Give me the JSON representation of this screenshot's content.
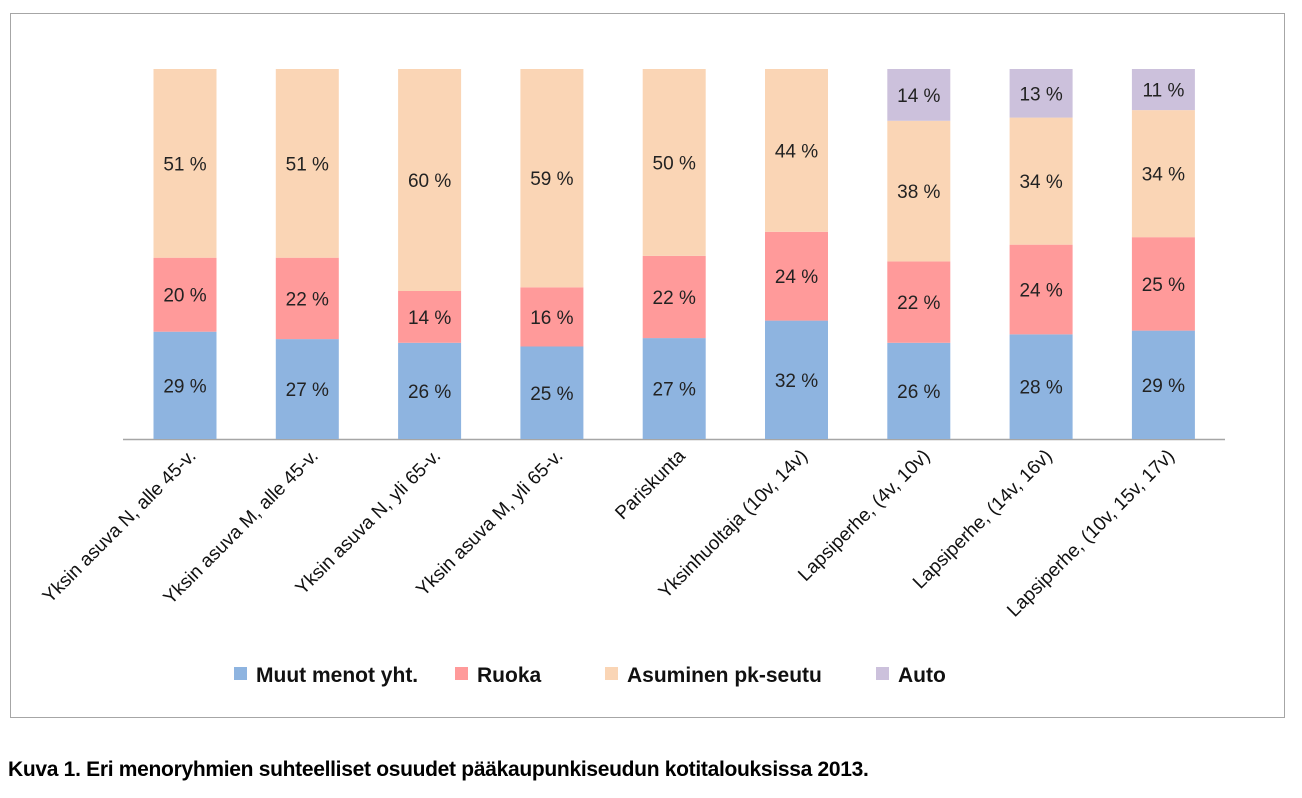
{
  "chart_data": {
    "type": "bar",
    "stacked": true,
    "categories": [
      "Yksin asuva N, alle 45-v.",
      "Yksin asuva M, alle 45-v.",
      "Yksin asuva N, yli 65-v.",
      "Yksin asuva M, yli 65-v.",
      "Pariskunta",
      "Yksinhuoltaja (10v, 14v)",
      "Lapsiperhe, (4v, 10v)",
      "Lapsiperhe, (14v, 16v)",
      "Lapsiperhe, (10v, 15v, 17v)"
    ],
    "series": [
      {
        "name": "Muut menot yht.",
        "color": "#8eb4e0",
        "values": [
          29,
          27,
          26,
          25,
          27,
          32,
          26,
          28,
          29
        ]
      },
      {
        "name": "Ruoka",
        "color": "#ff9a9a",
        "values": [
          20,
          22,
          14,
          16,
          22,
          24,
          22,
          24,
          25
        ]
      },
      {
        "name": "Asuminen pk-seutu",
        "color": "#fad5b5",
        "values": [
          51,
          51,
          60,
          59,
          50,
          44,
          38,
          34,
          34
        ]
      },
      {
        "name": "Auto",
        "color": "#ccc1dc",
        "values": [
          null,
          null,
          null,
          null,
          null,
          null,
          14,
          13,
          11
        ]
      }
    ],
    "value_suffix": " %",
    "title": "",
    "xlabel": "",
    "ylabel": "",
    "ylim": [
      0,
      100
    ],
    "grid": false,
    "legend": "bottom"
  },
  "caption": "Kuva 1. Eri menoryhmien suhteelliset osuudet pääkaupunkiseudun kotitalouksissa 2013."
}
